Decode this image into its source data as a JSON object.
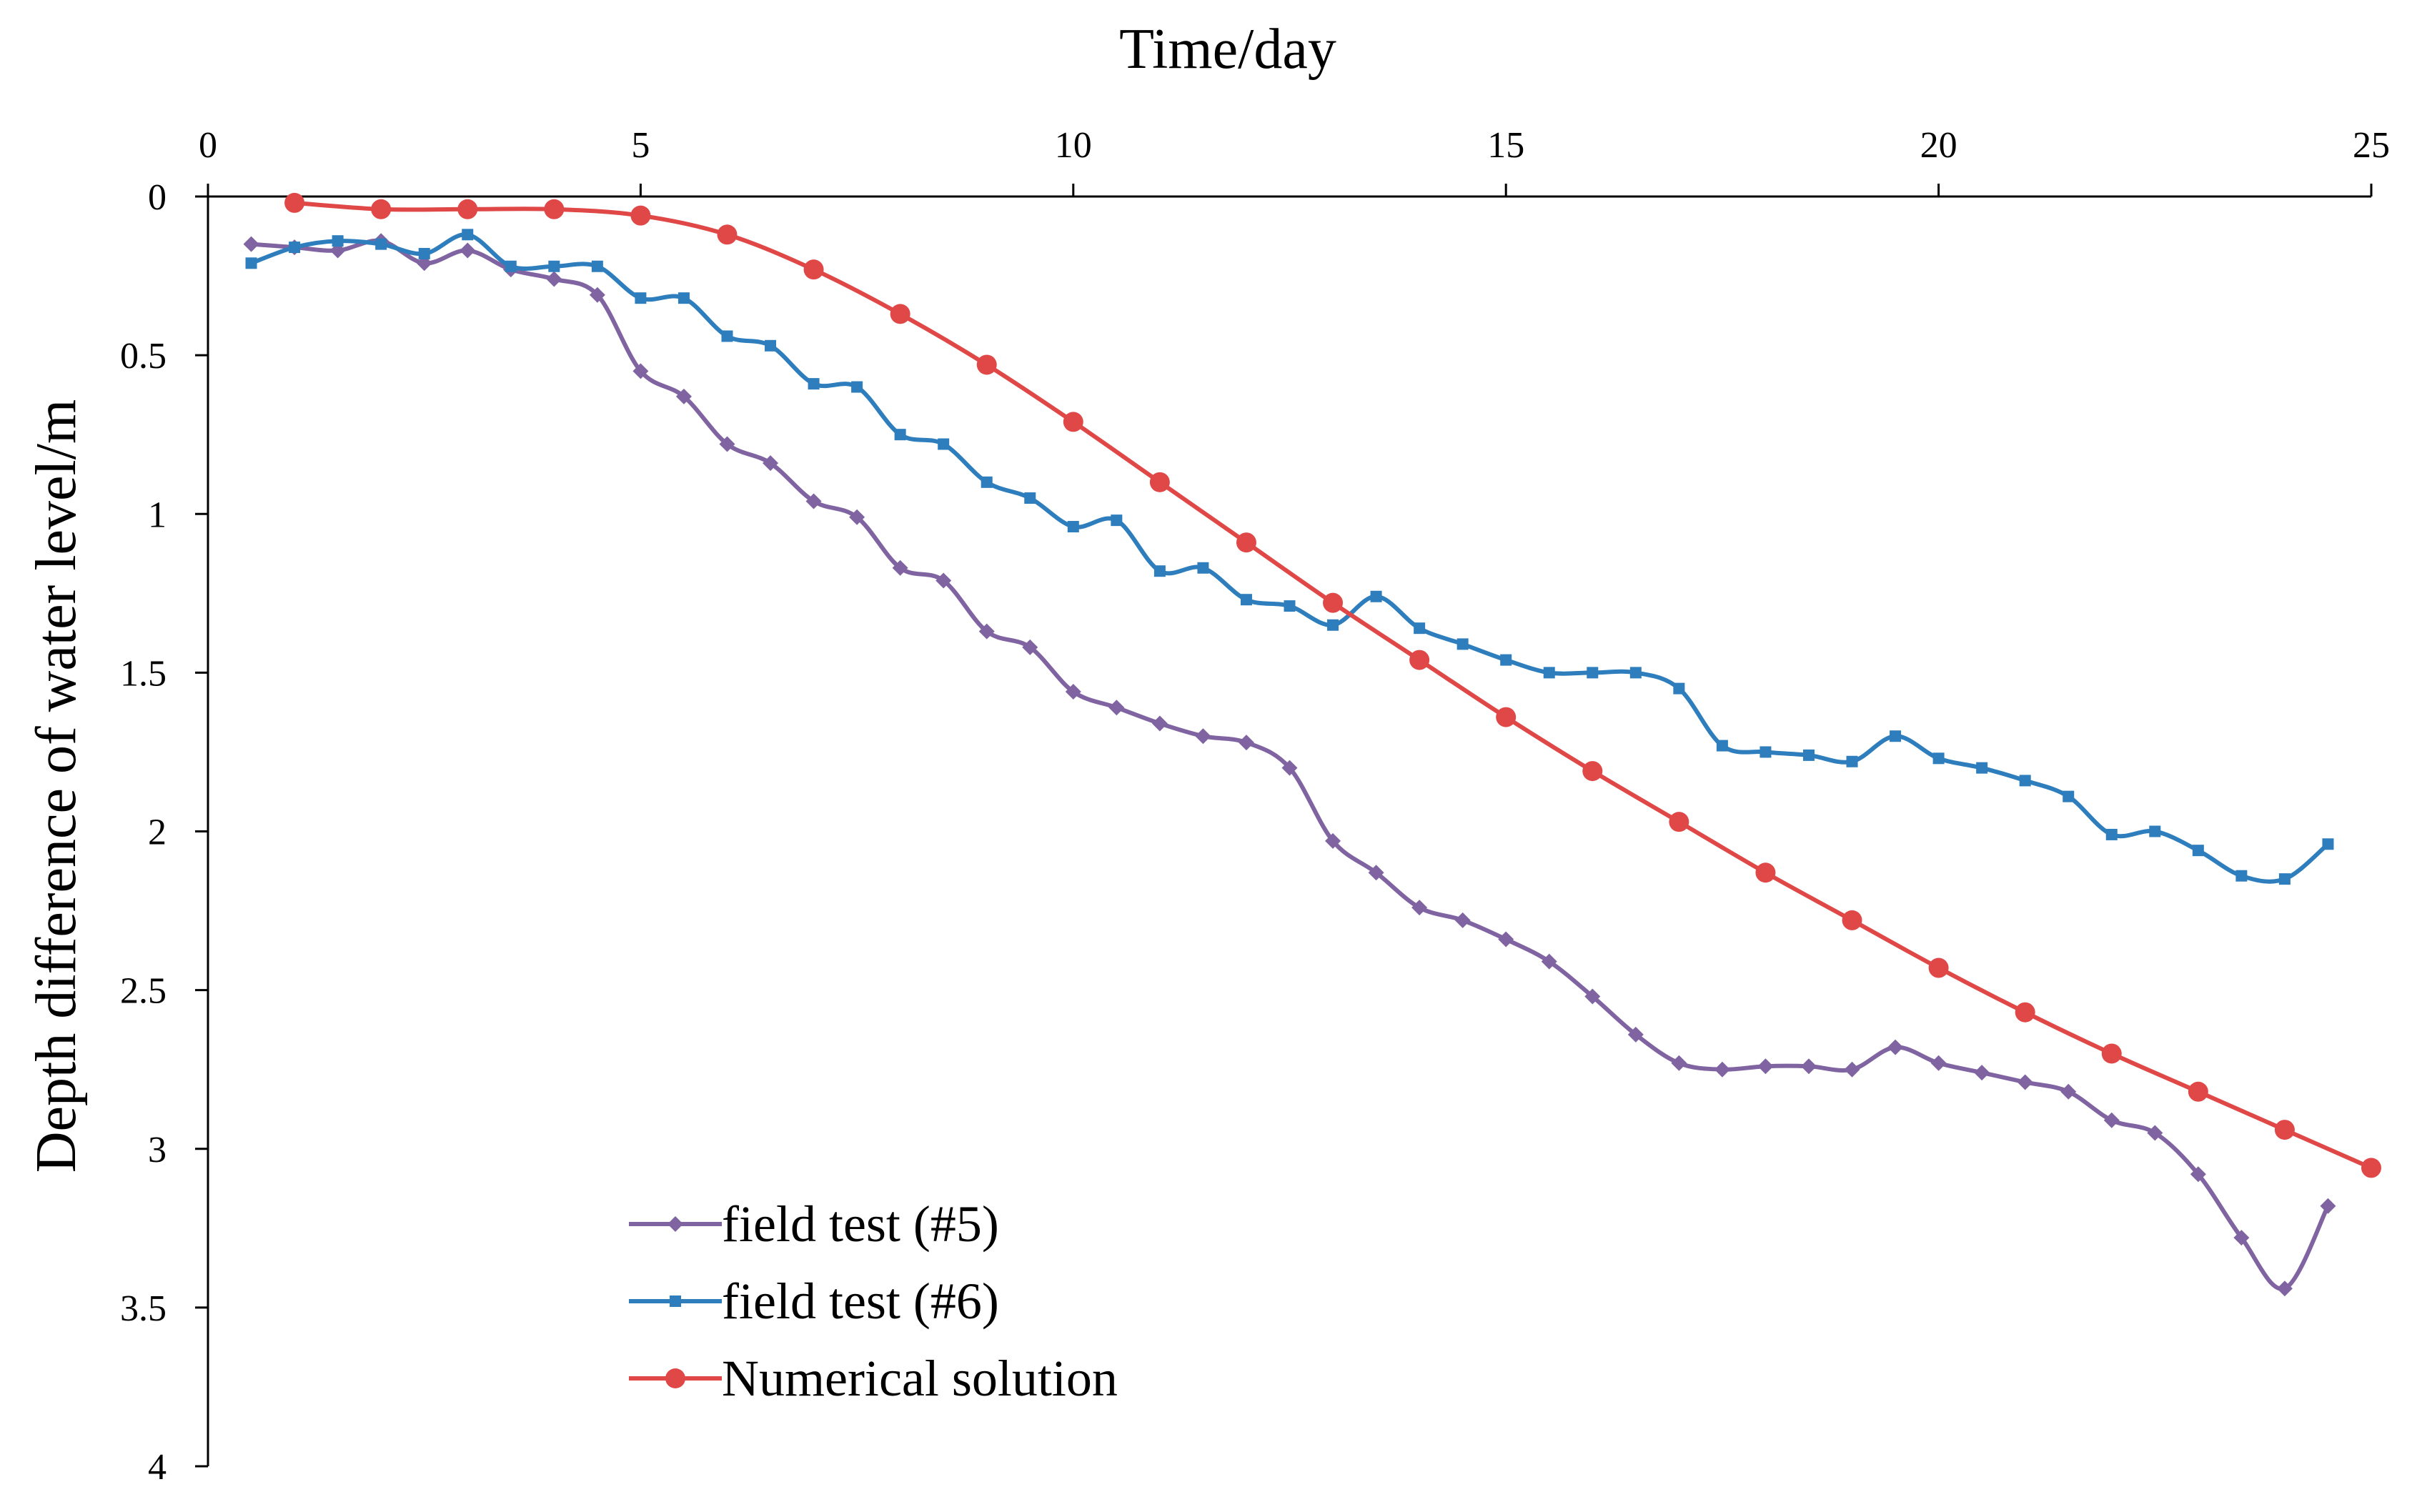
{
  "chart_data": {
    "type": "line",
    "title": "",
    "xlabel": "Time/day",
    "ylabel": "Depth difference  of water level/m",
    "xlim": [
      0,
      25
    ],
    "ylim": [
      0,
      4
    ],
    "y_inverted": true,
    "x_axis_position": "top",
    "xticks": [
      0,
      5,
      10,
      15,
      20,
      25
    ],
    "yticks": [
      0,
      0.5,
      1,
      1.5,
      2,
      2.5,
      3,
      3.5,
      4
    ],
    "xtick_labels": [
      "0",
      "5",
      "10",
      "15",
      "20",
      "25"
    ],
    "ytick_labels": [
      "0",
      "0.5",
      "1",
      "1.5",
      "2",
      "2.5",
      "3",
      "3.5",
      "4"
    ],
    "legend_position": "bottom-left",
    "grid": false,
    "series": [
      {
        "name": "field test (#5)",
        "color": "#8064A2",
        "marker": "diamond",
        "x": [
          0.5,
          1,
          1.5,
          2,
          2.5,
          3,
          3.5,
          4,
          4.5,
          5,
          5.5,
          6,
          6.5,
          7,
          7.5,
          8,
          8.5,
          9,
          9.5,
          10,
          10.5,
          11,
          11.5,
          12,
          12.5,
          13,
          13.5,
          14,
          14.5,
          15,
          15.5,
          16,
          16.5,
          17,
          17.5,
          18,
          18.5,
          19,
          19.5,
          20,
          20.5,
          21,
          21.5,
          22,
          22.5,
          23,
          23.5,
          24,
          24.5
        ],
        "y": [
          0.15,
          0.16,
          0.17,
          0.14,
          0.21,
          0.17,
          0.23,
          0.26,
          0.31,
          0.55,
          0.63,
          0.78,
          0.84,
          0.96,
          1.01,
          1.17,
          1.21,
          1.37,
          1.42,
          1.56,
          1.61,
          1.66,
          1.7,
          1.72,
          1.8,
          2.03,
          2.13,
          2.24,
          2.28,
          2.34,
          2.41,
          2.52,
          2.64,
          2.73,
          2.75,
          2.74,
          2.74,
          2.75,
          2.68,
          2.73,
          2.76,
          2.79,
          2.82,
          2.91,
          2.95,
          3.08,
          3.28,
          3.44,
          3.18
        ]
      },
      {
        "name": "field test (#6)",
        "color": "#2E7EBD",
        "marker": "square",
        "x": [
          0.5,
          1,
          1.5,
          2,
          2.5,
          3,
          3.5,
          4,
          4.5,
          5,
          5.5,
          6,
          6.5,
          7,
          7.5,
          8,
          8.5,
          9,
          9.5,
          10,
          10.5,
          11,
          11.5,
          12,
          12.5,
          13,
          13.5,
          14,
          14.5,
          15,
          15.5,
          16,
          16.5,
          17,
          17.5,
          18,
          18.5,
          19,
          19.5,
          20,
          20.5,
          21,
          21.5,
          22,
          22.5,
          23,
          23.5,
          24,
          24.5
        ],
        "y": [
          0.21,
          0.16,
          0.14,
          0.15,
          0.18,
          0.12,
          0.22,
          0.22,
          0.22,
          0.32,
          0.32,
          0.44,
          0.47,
          0.59,
          0.6,
          0.75,
          0.78,
          0.9,
          0.95,
          1.04,
          1.02,
          1.18,
          1.17,
          1.27,
          1.29,
          1.35,
          1.26,
          1.36,
          1.41,
          1.46,
          1.5,
          1.5,
          1.5,
          1.55,
          1.73,
          1.75,
          1.76,
          1.78,
          1.7,
          1.77,
          1.8,
          1.84,
          1.89,
          2.01,
          2.0,
          2.06,
          2.14,
          2.15,
          2.04
        ]
      },
      {
        "name": "Numerical solution",
        "color": "#E04848",
        "marker": "circle",
        "x": [
          1,
          2,
          3,
          4,
          5,
          6,
          7,
          8,
          9,
          10,
          11,
          12,
          13,
          14,
          15,
          16,
          17,
          18,
          19,
          20,
          21,
          22,
          23,
          24,
          25
        ],
        "y": [
          0.02,
          0.04,
          0.04,
          0.04,
          0.06,
          0.12,
          0.23,
          0.37,
          0.53,
          0.71,
          0.9,
          1.09,
          1.28,
          1.46,
          1.64,
          1.81,
          1.97,
          2.13,
          2.28,
          2.43,
          2.57,
          2.7,
          2.82,
          2.94,
          3.06
        ]
      }
    ]
  }
}
